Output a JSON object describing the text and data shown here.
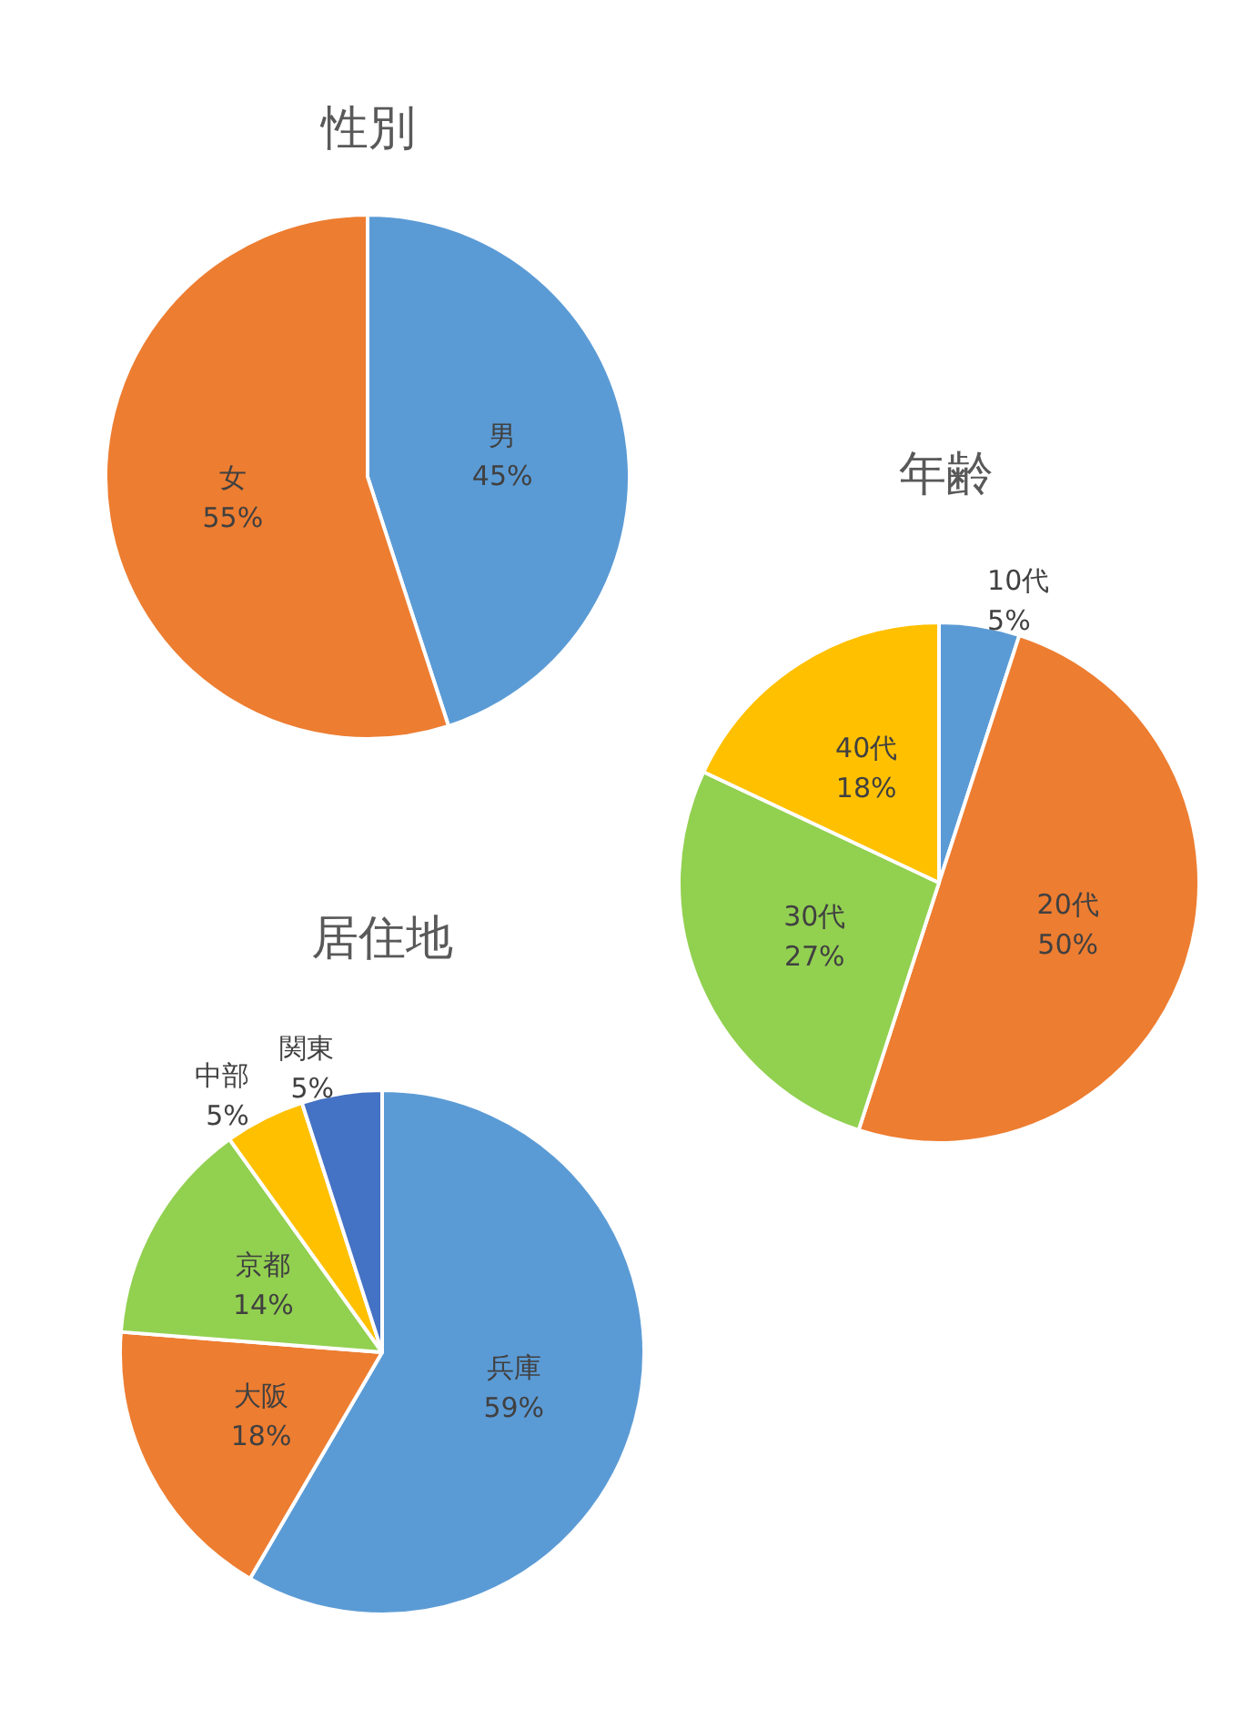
{
  "chart_data": [
    {
      "type": "pie",
      "title": "性別",
      "categories": [
        "男",
        "女"
      ],
      "values": [
        45,
        55
      ],
      "value_labels": [
        "45%",
        "55%"
      ],
      "colors": [
        "#5b9bd5",
        "#ed7d31"
      ],
      "legend": false
    },
    {
      "type": "pie",
      "title": "年齢",
      "categories": [
        "10代",
        "20代",
        "30代",
        "40代"
      ],
      "values": [
        5,
        50,
        27,
        18
      ],
      "value_labels": [
        "5%",
        "50%",
        "27%",
        "18%"
      ],
      "colors": [
        "#5b9bd5",
        "#ed7d31",
        "#92d050",
        "#ffc000"
      ],
      "legend": false
    },
    {
      "type": "pie",
      "title": "居住地",
      "categories": [
        "兵庫",
        "大阪",
        "京都",
        "中部",
        "関東"
      ],
      "values": [
        59,
        18,
        14,
        5,
        5
      ],
      "value_labels": [
        "59%",
        "18%",
        "14%",
        "5%",
        "5%"
      ],
      "colors": [
        "#5b9bd5",
        "#ed7d31",
        "#92d050",
        "#ffc000",
        "#4472c4"
      ],
      "legend": false
    }
  ]
}
